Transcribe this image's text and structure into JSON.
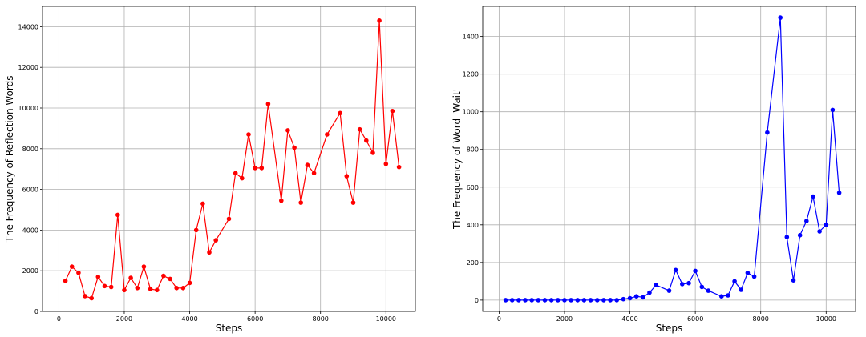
{
  "chart_data": [
    {
      "type": "line",
      "xlabel": "Steps",
      "ylabel": "The Frequency of Reflection Words",
      "xlim": [
        -500,
        10900
      ],
      "ylim": [
        0,
        15000
      ],
      "xticks": [
        0,
        2000,
        4000,
        6000,
        8000,
        10000
      ],
      "yticks": [
        0,
        2000,
        4000,
        6000,
        8000,
        10000,
        12000,
        14000
      ],
      "grid": true,
      "color": "#ff0000",
      "x": [
        200,
        400,
        600,
        800,
        1000,
        1200,
        1400,
        1600,
        1800,
        2000,
        2200,
        2400,
        2600,
        2800,
        3000,
        3200,
        3400,
        3600,
        3800,
        4000,
        4200,
        4400,
        4600,
        4800,
        5200,
        5400,
        5600,
        5800,
        6000,
        6200,
        6400,
        6800,
        7000,
        7200,
        7400,
        7600,
        7800,
        8200,
        8600,
        8800,
        9000,
        9200,
        9400,
        9600,
        9800,
        10000,
        10200,
        10400
      ],
      "y": [
        1500,
        2200,
        1900,
        750,
        650,
        1700,
        1250,
        1200,
        4750,
        1050,
        1650,
        1150,
        2200,
        1100,
        1050,
        1750,
        1600,
        1150,
        1150,
        1400,
        4000,
        5300,
        2900,
        3500,
        4550,
        6800,
        6550,
        8700,
        7050,
        7050,
        10200,
        5450,
        8900,
        8050,
        5350,
        7200,
        6800,
        8700,
        9750,
        6650,
        5350,
        8950,
        8400,
        7800,
        14300,
        7250,
        9850,
        7100
      ]
    },
    {
      "type": "line",
      "xlabel": "Steps",
      "ylabel": "The Frequency of Word 'Wait'",
      "xlim": [
        -500,
        10900
      ],
      "ylim": [
        -60,
        1560
      ],
      "xticks": [
        0,
        2000,
        4000,
        6000,
        8000,
        10000
      ],
      "yticks": [
        0,
        200,
        400,
        600,
        800,
        1000,
        1200,
        1400
      ],
      "grid": true,
      "color": "#0000ff",
      "x": [
        200,
        400,
        600,
        800,
        1000,
        1200,
        1400,
        1600,
        1800,
        2000,
        2200,
        2400,
        2600,
        2800,
        3000,
        3200,
        3400,
        3600,
        3800,
        4000,
        4200,
        4400,
        4600,
        4800,
        5200,
        5400,
        5600,
        5800,
        6000,
        6200,
        6400,
        6800,
        7000,
        7200,
        7400,
        7600,
        7800,
        8200,
        8600,
        8800,
        9000,
        9200,
        9400,
        9600,
        9800,
        10000,
        10200,
        10400
      ],
      "y": [
        0,
        0,
        0,
        0,
        0,
        0,
        0,
        0,
        0,
        0,
        0,
        0,
        0,
        0,
        0,
        0,
        0,
        0,
        5,
        10,
        20,
        15,
        40,
        80,
        50,
        160,
        85,
        90,
        155,
        70,
        50,
        20,
        25,
        100,
        55,
        145,
        125,
        890,
        1500,
        335,
        105,
        345,
        420,
        550,
        365,
        400,
        1010,
        570
      ]
    }
  ]
}
